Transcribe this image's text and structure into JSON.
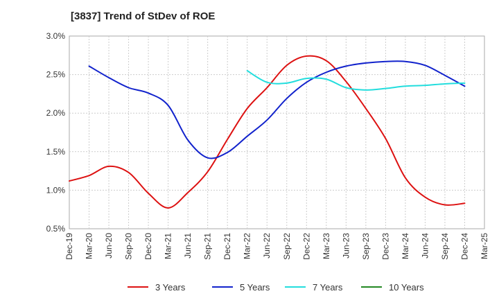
{
  "chart_data": {
    "type": "line",
    "title": "[3837]  Trend of StDev of ROE",
    "xlabel": "",
    "ylabel": "",
    "x_ticks": [
      "Dec-19",
      "Mar-20",
      "Jun-20",
      "Sep-20",
      "Dec-20",
      "Mar-21",
      "Jun-21",
      "Sep-21",
      "Dec-21",
      "Mar-22",
      "Jun-22",
      "Sep-22",
      "Dec-22",
      "Mar-23",
      "Jun-23",
      "Sep-23",
      "Dec-23",
      "Mar-24",
      "Jun-24",
      "Sep-24",
      "Dec-24",
      "Mar-25"
    ],
    "y_ticks": [
      "0.5%",
      "1.0%",
      "1.5%",
      "2.0%",
      "2.5%",
      "3.0%"
    ],
    "ylim": [
      0.5,
      3.0
    ],
    "grid": true,
    "legend_position": "bottom",
    "series": [
      {
        "name": "3 Years",
        "color": "#dd1111",
        "values": [
          [
            "Dec-19",
            1.12
          ],
          [
            "Mar-20",
            1.19
          ],
          [
            "Jun-20",
            1.31
          ],
          [
            "Sep-20",
            1.23
          ],
          [
            "Dec-20",
            0.96
          ],
          [
            "Mar-21",
            0.77
          ],
          [
            "Jun-21",
            0.97
          ],
          [
            "Sep-21",
            1.24
          ],
          [
            "Dec-21",
            1.66
          ],
          [
            "Mar-22",
            2.06
          ],
          [
            "Jun-22",
            2.33
          ],
          [
            "Sep-22",
            2.62
          ],
          [
            "Dec-22",
            2.74
          ],
          [
            "Mar-23",
            2.68
          ],
          [
            "Jun-23",
            2.41
          ],
          [
            "Sep-23",
            2.06
          ],
          [
            "Dec-23",
            1.67
          ],
          [
            "Mar-24",
            1.16
          ],
          [
            "Jun-24",
            0.91
          ],
          [
            "Sep-24",
            0.81
          ],
          [
            "Dec-24",
            0.83
          ]
        ]
      },
      {
        "name": "5 Years",
        "color": "#1122cc",
        "values": [
          [
            "Mar-20",
            2.61
          ],
          [
            "Jun-20",
            2.46
          ],
          [
            "Sep-20",
            2.33
          ],
          [
            "Dec-20",
            2.26
          ],
          [
            "Mar-21",
            2.1
          ],
          [
            "Jun-21",
            1.65
          ],
          [
            "Sep-21",
            1.42
          ],
          [
            "Dec-21",
            1.49
          ],
          [
            "Mar-22",
            1.7
          ],
          [
            "Jun-22",
            1.91
          ],
          [
            "Sep-22",
            2.19
          ],
          [
            "Dec-22",
            2.4
          ],
          [
            "Mar-23",
            2.53
          ],
          [
            "Jun-23",
            2.61
          ],
          [
            "Sep-23",
            2.65
          ],
          [
            "Dec-23",
            2.67
          ],
          [
            "Mar-24",
            2.67
          ],
          [
            "Jun-24",
            2.62
          ],
          [
            "Sep-24",
            2.49
          ],
          [
            "Dec-24",
            2.35
          ]
        ]
      },
      {
        "name": "7 Years",
        "color": "#22dddd",
        "values": [
          [
            "Mar-22",
            2.55
          ],
          [
            "Jun-22",
            2.4
          ],
          [
            "Sep-22",
            2.39
          ],
          [
            "Dec-22",
            2.45
          ],
          [
            "Mar-23",
            2.44
          ],
          [
            "Jun-23",
            2.33
          ],
          [
            "Sep-23",
            2.3
          ],
          [
            "Dec-23",
            2.32
          ],
          [
            "Mar-24",
            2.35
          ],
          [
            "Jun-24",
            2.36
          ],
          [
            "Sep-24",
            2.38
          ],
          [
            "Dec-24",
            2.39
          ]
        ]
      },
      {
        "name": "10 Years",
        "color": "#228822",
        "values": []
      }
    ]
  }
}
